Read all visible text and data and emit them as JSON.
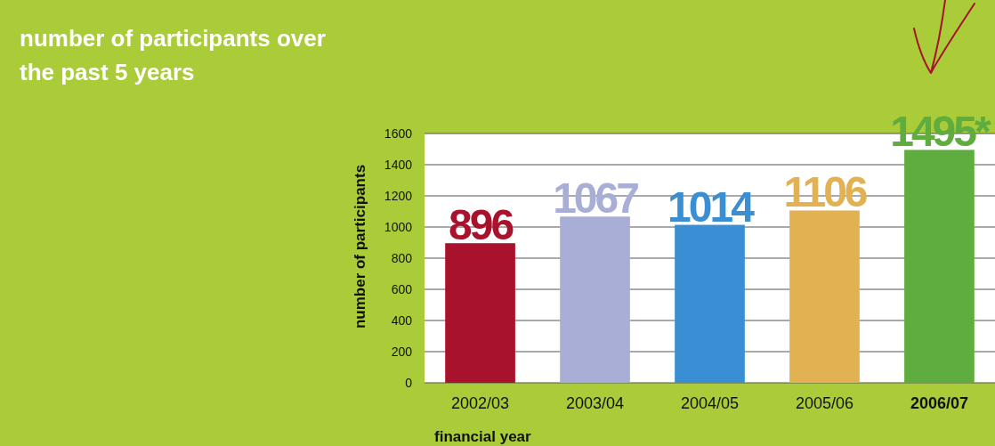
{
  "chart_data": {
    "type": "bar",
    "title": "number of participants over the past 5 years",
    "xlabel": "financial year",
    "ylabel": "number of participants",
    "categories": [
      "2002/03",
      "2003/04",
      "2004/05",
      "2005/06",
      "2006/07"
    ],
    "values": [
      896,
      1067,
      1014,
      1106,
      1495
    ],
    "colors": [
      "#a8122c",
      "#a9aed6",
      "#3a8fd4",
      "#e2b152",
      "#5fac3f"
    ],
    "value_labels": [
      "896",
      "1067",
      "1014",
      "1106",
      "1495*"
    ],
    "ylim": [
      0,
      1600
    ],
    "yticks": [
      0,
      200,
      400,
      600,
      800,
      1000,
      1200,
      1400,
      1600
    ],
    "grid": "y"
  }
}
